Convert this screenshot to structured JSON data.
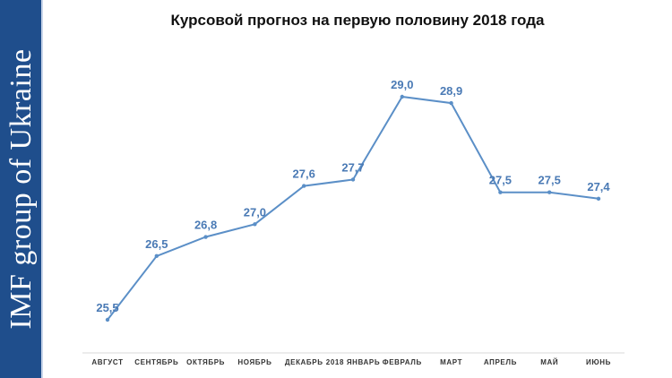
{
  "sidebar": {
    "text": "IMF group of Ukraine"
  },
  "chart_data": {
    "type": "line",
    "title": "Курсовой прогноз на первую половину 2018 года",
    "categories": [
      "АВГУСТ",
      "СЕНТЯБРЬ",
      "ОКТЯБРЬ",
      "НОЯБРЬ",
      "ДЕКАБРЬ",
      "2018 ЯНВАРЬ",
      "ФЕВРАЛЬ",
      "МАРТ",
      "АПРЕЛЬ",
      "МАЙ",
      "ИЮНЬ"
    ],
    "values": [
      25.5,
      26.5,
      26.8,
      27.0,
      27.6,
      27.7,
      29.0,
      28.9,
      27.5,
      27.5,
      27.4
    ],
    "labels": [
      "25,5",
      "26,5",
      "26,8",
      "27,0",
      "27,6",
      "27,7",
      "29,0",
      "28,9",
      "27,5",
      "27,5",
      "27,4"
    ],
    "xlabel": "",
    "ylabel": "",
    "ylim": [
      25.1,
      29.2
    ],
    "grid": false,
    "legend": "none",
    "colors": {
      "line": "#5b8fc7",
      "labels": "#4a7ab5"
    }
  }
}
